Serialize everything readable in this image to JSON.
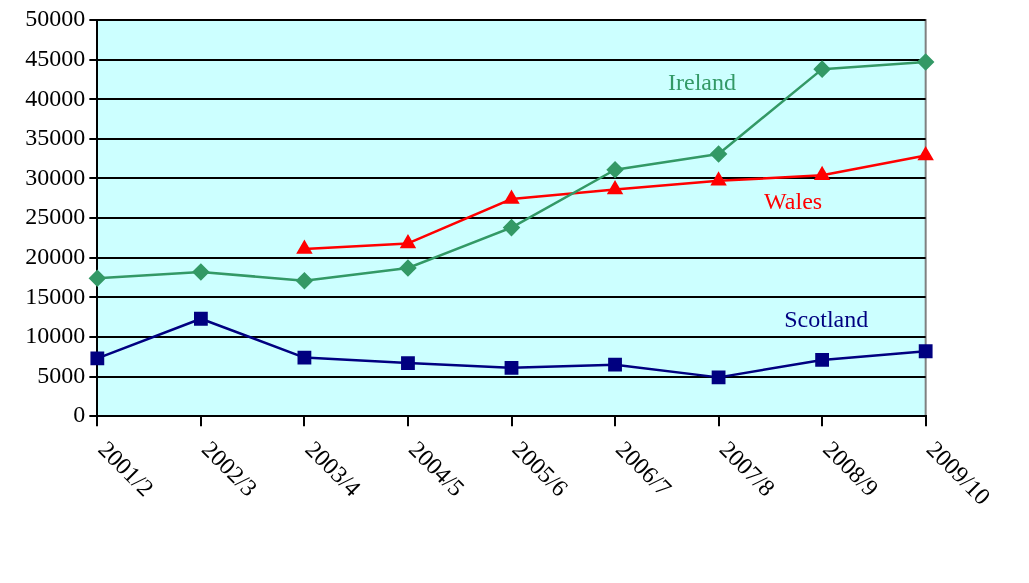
{
  "chart_data": {
    "type": "line",
    "categories": [
      "2001/2",
      "2002/3",
      "2003/4",
      "2004/5",
      "2005/6",
      "2006/7",
      "2007/8",
      "2008/9",
      "2009/10"
    ],
    "series": [
      {
        "name": "Ireland",
        "color": "#339966",
        "marker": "diamond",
        "values": [
          17400,
          18200,
          17100,
          18700,
          23800,
          31100,
          33100,
          43800,
          44700
        ]
      },
      {
        "name": "Wales",
        "color": "#ff0000",
        "marker": "triangle",
        "values": [
          null,
          null,
          21100,
          21800,
          27400,
          28600,
          29700,
          30400,
          32900
        ]
      },
      {
        "name": "Scotland",
        "color": "#000080",
        "marker": "square",
        "values": [
          7300,
          12300,
          7400,
          6700,
          6100,
          6500,
          4900,
          7100,
          8200
        ]
      }
    ],
    "ylim": [
      0,
      50000
    ],
    "yticks": [
      0,
      5000,
      10000,
      15000,
      20000,
      25000,
      30000,
      35000,
      40000,
      45000,
      50000
    ],
    "grid": "y",
    "legend": false,
    "line_style": "solid"
  }
}
